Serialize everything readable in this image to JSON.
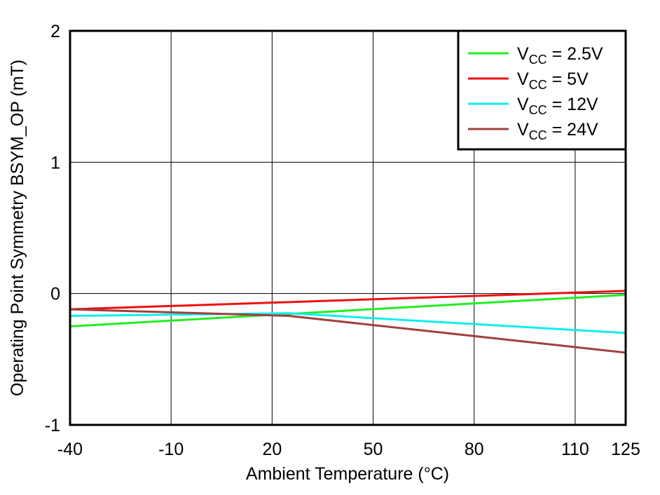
{
  "chart_data": {
    "type": "line",
    "x": [
      -40,
      25,
      125
    ],
    "series": [
      {
        "name": "VCC = 2.5V",
        "color": "#22ee22",
        "values": [
          -0.25,
          -0.155,
          -0.01
        ]
      },
      {
        "name": "VCC = 5V",
        "color": "#ee1111",
        "values": [
          -0.12,
          -0.065,
          0.02
        ]
      },
      {
        "name": "VCC = 12V",
        "color": "#11eeee",
        "values": [
          -0.17,
          -0.15,
          -0.3
        ]
      },
      {
        "name": "VCC = 24V",
        "color": "#a04040",
        "values": [
          -0.12,
          -0.17,
          -0.45
        ]
      }
    ],
    "x_label": "Ambient Temperature (°C)",
    "y_label": "Operating Point Symmetry BSYM_OP (mT)",
    "xlim": [
      -40,
      125
    ],
    "xticks": [
      -40,
      -10,
      20,
      50,
      80,
      110,
      125
    ],
    "ylim": [
      -1,
      2
    ],
    "yticks": [
      -1,
      0,
      1,
      2
    ],
    "grid": true,
    "legend": "upper-right"
  }
}
